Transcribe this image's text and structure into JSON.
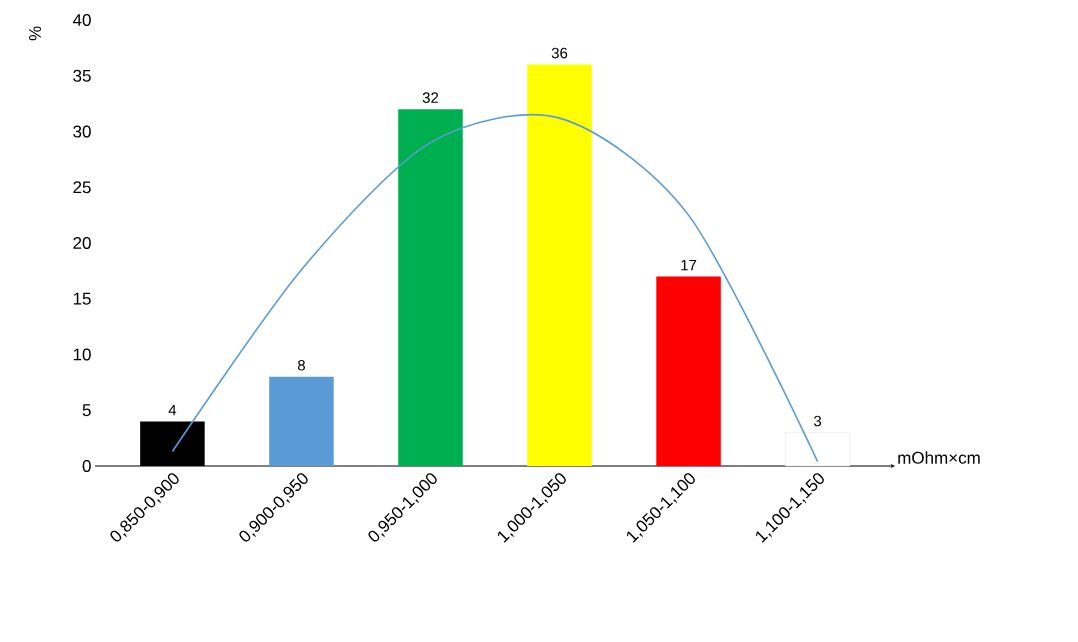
{
  "chart_data": {
    "type": "bar",
    "ylabel": "%",
    "xlabel": "mOhm×cm",
    "categories": [
      "0,850-0,900",
      "0,900-0,950",
      "0,950-1,000",
      "1,000-1,050",
      "1,050-1,100",
      "1,100-1,150"
    ],
    "series": [
      {
        "values": [
          4,
          8,
          32,
          36,
          17,
          3
        ],
        "value_labels": [
          "4",
          "8",
          "32",
          "36",
          "17",
          "3"
        ],
        "colors": [
          "#000000",
          "#5b9bd5",
          "#00b050",
          "#ffff00",
          "#ff0000",
          "#ffffff"
        ]
      },
      {
        "type": "line",
        "color": "#5b9bd5",
        "values": [
          1.3,
          17.6,
          29.0,
          31.2,
          22.5,
          0.4
        ]
      }
    ],
    "ylim": [
      0,
      40
    ],
    "yticks": [
      0,
      5,
      10,
      15,
      20,
      25,
      30,
      35,
      40
    ],
    "grid": false
  }
}
